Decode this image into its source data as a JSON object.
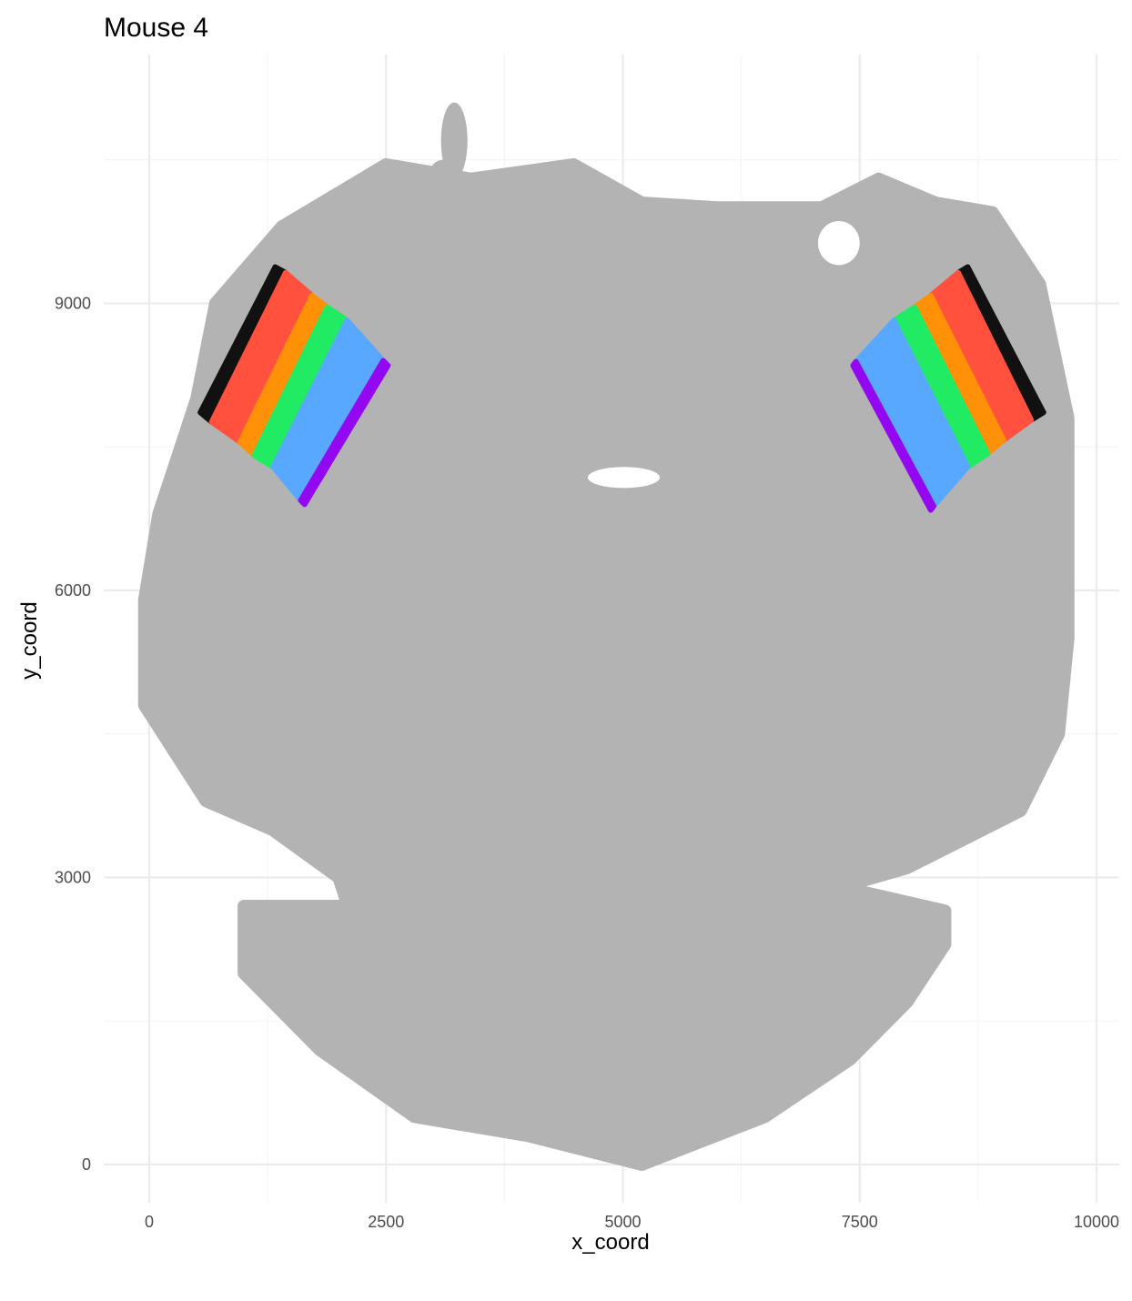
{
  "chart_data": {
    "type": "scatter",
    "title": "Mouse 4",
    "xlabel": "x_coord",
    "ylabel": "y_coord",
    "xlim": [
      -480,
      10240
    ],
    "ylim": [
      -400,
      11600
    ],
    "x_ticks": [
      0,
      2500,
      5000,
      7500,
      10000
    ],
    "x_tick_labels": [
      "0",
      "2500",
      "5000",
      "7500",
      "10000"
    ],
    "y_ticks": [
      0,
      3000,
      6000,
      9000
    ],
    "y_tick_labels": [
      "0",
      "3000",
      "6000",
      "9000"
    ],
    "grid": true,
    "legend": "none",
    "colors": {
      "background_cells": "#b3b3b3",
      "grid_major": "#ebebeb",
      "grid_minor": "#f5f5f5",
      "layer_1": "#111111",
      "layer_2": "#ff513d",
      "layer_3": "#ff9108",
      "layer_4": "#21eb62",
      "layer_5": "#58a8ff",
      "layer_6": "#9308f0"
    },
    "tissue_outline": [
      [
        4480,
        10450
      ],
      [
        5200,
        10050
      ],
      [
        6000,
        10000
      ],
      [
        7100,
        10000
      ],
      [
        7700,
        10300
      ],
      [
        8300,
        10050
      ],
      [
        8900,
        9950
      ],
      [
        9400,
        9200
      ],
      [
        9700,
        7800
      ],
      [
        9700,
        6600
      ],
      [
        9700,
        5500
      ],
      [
        9600,
        4500
      ],
      [
        9200,
        3700
      ],
      [
        8000,
        3100
      ],
      [
        7300,
        2900
      ],
      [
        8400,
        2650
      ],
      [
        8400,
        2300
      ],
      [
        8000,
        1700
      ],
      [
        7400,
        1100
      ],
      [
        6500,
        500
      ],
      [
        5200,
        0
      ],
      [
        4000,
        300
      ],
      [
        2800,
        500
      ],
      [
        1800,
        1200
      ],
      [
        1000,
        2000
      ],
      [
        1000,
        2700
      ],
      [
        2100,
        2700
      ],
      [
        2000,
        3000
      ],
      [
        1300,
        3500
      ],
      [
        600,
        3800
      ],
      [
        -50,
        4800
      ],
      [
        -50,
        5900
      ],
      [
        100,
        6800
      ],
      [
        500,
        8000
      ],
      [
        700,
        9000
      ],
      [
        1400,
        9800
      ],
      [
        2500,
        10450
      ],
      [
        3400,
        10300
      ]
    ],
    "tissue_blobs": [
      {
        "x": 3220,
        "y": 10700,
        "rx": 140,
        "ry": 400
      },
      {
        "x": 3100,
        "y": 10300,
        "rx": 160,
        "ry": 200
      }
    ],
    "holes": [
      {
        "x": 7280,
        "y": 9630,
        "rx": 220,
        "ry": 230
      },
      {
        "x": 5010,
        "y": 7180,
        "rx": 380,
        "ry": 110
      }
    ],
    "cortex_layers": [
      {
        "hemisphere": "left",
        "bands": [
          {
            "layer": "layer_1",
            "points": [
              [
                540,
                7860
              ],
              [
                1330,
                9380
              ],
              [
                1440,
                9320
              ],
              [
                660,
                7760
              ]
            ]
          },
          {
            "layer": "layer_2",
            "points": [
              [
                660,
                7760
              ],
              [
                1440,
                9320
              ],
              [
                1720,
                9080
              ],
              [
                960,
                7550
              ]
            ]
          },
          {
            "layer": "layer_3",
            "points": [
              [
                960,
                7550
              ],
              [
                1720,
                9080
              ],
              [
                1880,
                8960
              ],
              [
                1110,
                7410
              ]
            ]
          },
          {
            "layer": "layer_4",
            "points": [
              [
                1110,
                7410
              ],
              [
                1880,
                8960
              ],
              [
                2090,
                8820
              ],
              [
                1310,
                7290
              ]
            ]
          },
          {
            "layer": "layer_5",
            "points": [
              [
                1310,
                7290
              ],
              [
                2090,
                8820
              ],
              [
                2470,
                8400
              ],
              [
                1600,
                6940
              ]
            ]
          },
          {
            "layer": "layer_6",
            "points": [
              [
                1600,
                6940
              ],
              [
                2470,
                8400
              ],
              [
                2520,
                8350
              ],
              [
                1640,
                6900
              ]
            ]
          }
        ]
      },
      {
        "hemisphere": "right",
        "bands": [
          {
            "layer": "layer_1",
            "points": [
              [
                9310,
                7780
              ],
              [
                8540,
                9320
              ],
              [
                8640,
                9380
              ],
              [
                9440,
                7860
              ]
            ]
          },
          {
            "layer": "layer_2",
            "points": [
              [
                9020,
                7570
              ],
              [
                8250,
                9080
              ],
              [
                8540,
                9320
              ],
              [
                9310,
                7780
              ]
            ]
          },
          {
            "layer": "layer_3",
            "points": [
              [
                8850,
                7430
              ],
              [
                8080,
                8960
              ],
              [
                8250,
                9080
              ],
              [
                9020,
                7570
              ]
            ]
          },
          {
            "layer": "layer_4",
            "points": [
              [
                8640,
                7290
              ],
              [
                7860,
                8820
              ],
              [
                8080,
                8960
              ],
              [
                8850,
                7430
              ]
            ]
          },
          {
            "layer": "layer_5",
            "points": [
              [
                8280,
                6880
              ],
              [
                7460,
                8390
              ],
              [
                7860,
                8820
              ],
              [
                8640,
                7290
              ]
            ]
          },
          {
            "layer": "layer_6",
            "points": [
              [
                8250,
                6840
              ],
              [
                7430,
                8350
              ],
              [
                7460,
                8390
              ],
              [
                8280,
                6880
              ]
            ]
          }
        ]
      }
    ]
  }
}
